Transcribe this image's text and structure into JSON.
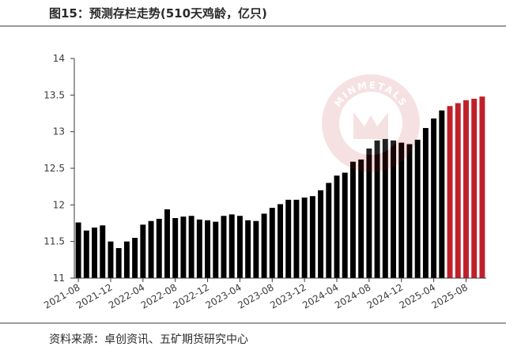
{
  "header": {
    "title": "图15：预测存栏走势(510天鸡龄，亿只)"
  },
  "footer": {
    "source": "资料来源：卓创资讯、五矿期货研究中心"
  },
  "watermark": {
    "text": "MINMETALS"
  },
  "colors": {
    "actual": "#000000",
    "forecast": "#c0202a",
    "axis": "#3a3a3a"
  },
  "chart_data": {
    "type": "bar",
    "ylim": [
      11,
      14
    ],
    "yticks": [
      11,
      11.5,
      12,
      12.5,
      13,
      13.5,
      14
    ],
    "ytick_labels": [
      "11",
      "11.5",
      "12",
      "12.5",
      "13",
      "13.5",
      "14"
    ],
    "grid": false,
    "categories": [
      "2021-08",
      "2021-09",
      "2021-10",
      "2021-11",
      "2021-12",
      "2022-01",
      "2022-02",
      "2022-03",
      "2022-04",
      "2022-05",
      "2022-06",
      "2022-07",
      "2022-08",
      "2022-09",
      "2022-10",
      "2022-11",
      "2022-12",
      "2023-01",
      "2023-02",
      "2023-03",
      "2023-04",
      "2023-05",
      "2023-06",
      "2023-07",
      "2023-08",
      "2023-09",
      "2023-10",
      "2023-11",
      "2023-12",
      "2024-01",
      "2024-02",
      "2024-03",
      "2024-04",
      "2024-05",
      "2024-06",
      "2024-07",
      "2024-08",
      "2024-09",
      "2024-10",
      "2024-11",
      "2024-12",
      "2025-01",
      "2025-02",
      "2025-03",
      "2025-04",
      "2025-05",
      "2025-06",
      "2025-07",
      "2025-08",
      "2025-09",
      "2025-10"
    ],
    "xtick_labels": [
      "2021-08",
      "2021-12",
      "2022-04",
      "2022-08",
      "2022-12",
      "2023-04",
      "2023-08",
      "2023-12",
      "2024-04",
      "2024-08",
      "2024-12",
      "2025-04",
      "2025-08"
    ],
    "series": [
      {
        "values": [
          11.76,
          11.65,
          11.69,
          11.72,
          11.5,
          11.41,
          11.5,
          11.55,
          11.73,
          11.78,
          11.81,
          11.94,
          11.82,
          11.84,
          11.85,
          11.8,
          11.79,
          11.77,
          11.85,
          11.87,
          11.85,
          11.79,
          11.78,
          11.88,
          11.96,
          12.01,
          12.07,
          12.07,
          12.1,
          12.12,
          12.2,
          12.3,
          12.4,
          12.44,
          12.59,
          12.62,
          12.77,
          12.88,
          12.9,
          12.88,
          12.85,
          12.83,
          12.89,
          13.05,
          13.18,
          13.29,
          13.35,
          13.39,
          13.43,
          13.45,
          13.48
        ],
        "forecast_start_index": 46
      }
    ]
  }
}
